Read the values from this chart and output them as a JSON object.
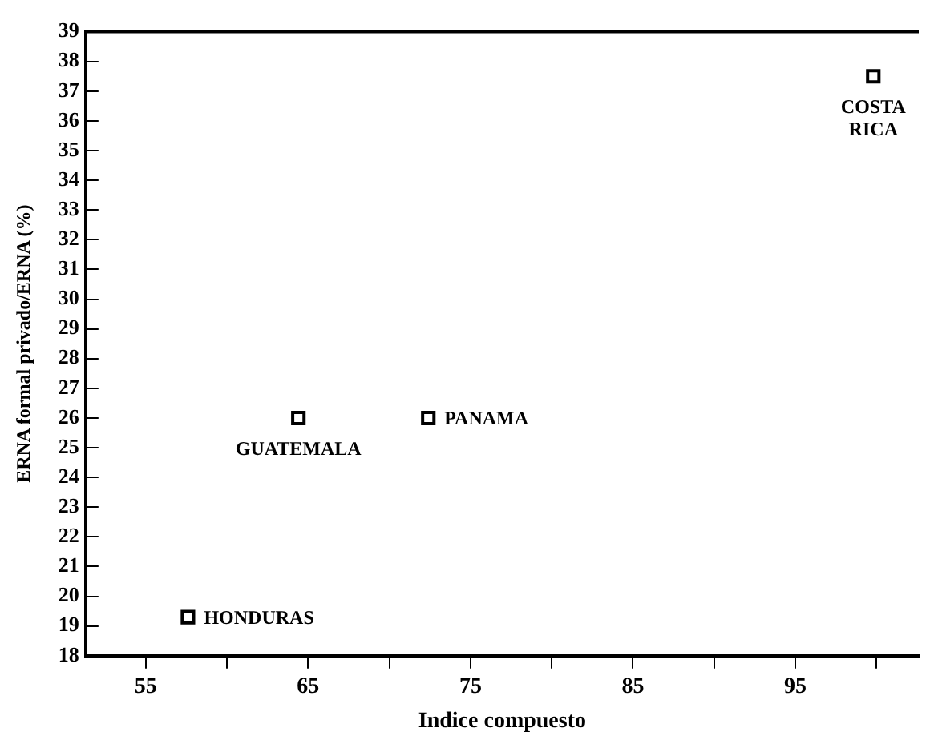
{
  "chart_data": {
    "type": "scatter",
    "xlabel": "Indice compuesto",
    "ylabel": "ERNA formal privado/ERNA (%)",
    "x": [
      57.6,
      64.4,
      72.4,
      99.8
    ],
    "series": [
      {
        "color": "#000000",
        "values": [
          19.3,
          26,
          26,
          37.5
        ]
      }
    ],
    "marker": "square",
    "grid": false,
    "legend": false,
    "xlim": [
      51.3,
      102.6
    ],
    "xticks": [
      55,
      {
        "value": 60,
        "label": null
      },
      65,
      {
        "value": 70,
        "label": null
      },
      75,
      {
        "value": 80,
        "label": null
      },
      85,
      {
        "value": 90,
        "label": null
      },
      95,
      {
        "value": 100,
        "label": null
      }
    ],
    "ylim": [
      18,
      39
    ],
    "yticks": [
      18,
      19,
      20,
      21,
      22,
      23,
      24,
      25,
      26,
      27,
      28,
      29,
      30,
      31,
      32,
      33,
      34,
      35,
      36,
      37,
      38,
      39
    ],
    "annotations": [
      {
        "text": "HONDURAS",
        "x": 57.6,
        "y": 19.3
      },
      {
        "text": "GUATEMALA",
        "x": 64.4,
        "y": 26
      },
      {
        "text": "PANAMA",
        "x": 72.4,
        "y": 26
      },
      {
        "text": "COSTA\nRICA",
        "x": 99.8,
        "y": 37.5
      }
    ]
  }
}
